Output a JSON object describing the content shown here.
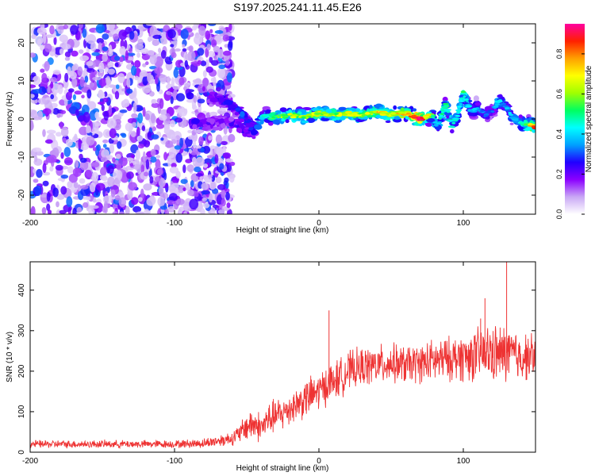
{
  "title": "S197.2025.241.11.45.E26",
  "chart_data": [
    {
      "type": "heatmap",
      "name": "spectrogram",
      "xlabel": "Height of straight line (km)",
      "ylabel": "Frequency (Hz)",
      "xlim": [
        -200,
        150
      ],
      "ylim": [
        -25,
        25
      ],
      "xticks": [
        -200,
        -100,
        0,
        100
      ],
      "yticks": [
        -20,
        -10,
        0,
        10,
        20
      ],
      "colorbar": {
        "label": "Normalized spectral amplitude",
        "range": [
          0,
          0.95
        ],
        "ticks": [
          0.0,
          0.2,
          0.4,
          0.6,
          0.8
        ],
        "tick_labels": [
          "0.0",
          "0.2",
          "0.4",
          "0.6",
          "0.8"
        ],
        "colors": [
          "#ffffff",
          "#c9a8f5",
          "#8b00ff",
          "#2000ff",
          "#00a0ff",
          "#00ffff",
          "#00ff60",
          "#a0ff00",
          "#ffff00",
          "#ffa000",
          "#ff2000",
          "#ff00a0"
        ]
      },
      "noise_region_x": [
        -200,
        -60
      ],
      "signal_band": {
        "x": [
          -75,
          -65,
          -55,
          -45,
          -38,
          -30,
          -20,
          -10,
          0,
          10,
          20,
          30,
          40,
          50,
          60,
          70,
          78,
          82,
          88,
          92,
          96,
          100,
          105,
          110,
          115,
          120,
          125,
          130,
          135,
          140,
          145,
          150
        ],
        "y": [
          6,
          5,
          2,
          -3,
          1,
          0.5,
          1,
          0.5,
          1.5,
          1,
          1.5,
          1,
          2,
          1,
          1.5,
          0,
          1,
          -2,
          4,
          -2,
          1,
          7,
          2,
          3,
          1,
          2,
          5,
          3,
          0,
          -1,
          -1.5,
          -2
        ],
        "amplitude": [
          0.25,
          0.3,
          0.35,
          0.3,
          0.45,
          0.55,
          0.6,
          0.6,
          0.65,
          0.6,
          0.65,
          0.6,
          0.7,
          0.65,
          0.7,
          0.9,
          0.55,
          0.4,
          0.5,
          0.45,
          0.4,
          0.5,
          0.35,
          0.35,
          0.3,
          0.3,
          0.4,
          0.35,
          0.4,
          0.45,
          0.6,
          0.8
        ]
      },
      "secondary_band": {
        "x": [
          -88,
          -80,
          -70,
          -60,
          -50,
          -45
        ],
        "y": [
          -1,
          -1.5,
          -0.5,
          -1,
          -3,
          -4
        ],
        "amplitude": [
          0.3,
          0.25,
          0.2,
          0.25,
          0.3,
          0.25
        ]
      }
    },
    {
      "type": "line",
      "name": "snr",
      "xlabel": "Height of straight line (km)",
      "ylabel": "SNR (10 * v/v)",
      "xlim": [
        -200,
        150
      ],
      "ylim": [
        0,
        470
      ],
      "xticks": [
        -200,
        -100,
        0,
        100
      ],
      "yticks": [
        0,
        100,
        200,
        300,
        400
      ],
      "color": "#ee3333",
      "series": [
        {
          "name": "SNR",
          "x": [
            -200,
            -150,
            -100,
            -80,
            -70,
            -60,
            -55,
            -50,
            -45,
            -40,
            -35,
            -30,
            -25,
            -20,
            -15,
            -10,
            -5,
            0,
            5,
            10,
            15,
            20,
            25,
            30,
            40,
            50,
            60,
            70,
            80,
            90,
            100,
            110,
            120,
            125,
            130,
            135,
            140,
            150
          ],
          "mean": [
            20,
            20,
            20,
            22,
            28,
            35,
            45,
            65,
            70,
            60,
            80,
            90,
            95,
            110,
            120,
            130,
            140,
            150,
            165,
            175,
            185,
            200,
            205,
            210,
            215,
            220,
            215,
            220,
            225,
            230,
            235,
            240,
            245,
            240,
            245,
            240,
            235,
            240
          ],
          "noise": [
            8,
            8,
            8,
            10,
            12,
            15,
            20,
            30,
            35,
            30,
            35,
            35,
            35,
            35,
            35,
            40,
            40,
            40,
            40,
            40,
            40,
            40,
            40,
            40,
            40,
            40,
            40,
            40,
            45,
            45,
            50,
            55,
            60,
            60,
            60,
            55,
            50,
            45
          ]
        }
      ],
      "spikes": [
        {
          "x": 7,
          "y": 350
        },
        {
          "x": 130,
          "y": 470
        },
        {
          "x": 115,
          "y": 380
        },
        {
          "x": 112,
          "y": 330
        }
      ]
    }
  ]
}
